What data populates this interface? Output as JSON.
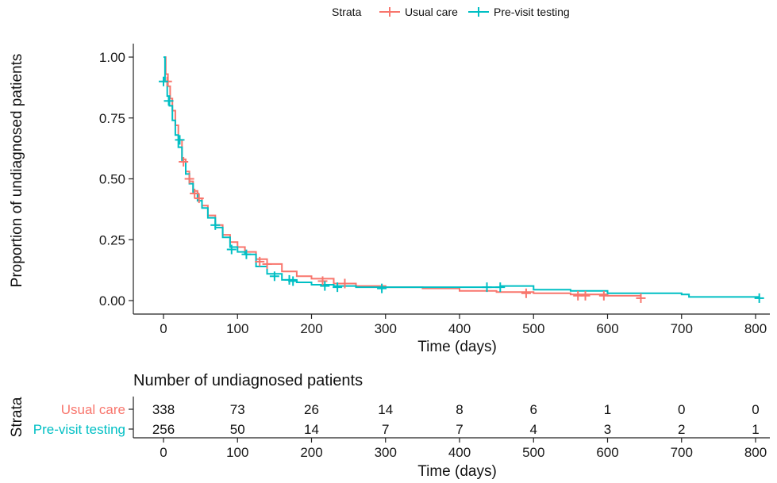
{
  "legend": {
    "title": "Strata",
    "items": [
      {
        "label": "Usual care",
        "color": "#F8766D"
      },
      {
        "label": "Pre-visit testing",
        "color": "#00BFC4"
      }
    ]
  },
  "chart_data": {
    "type": "line",
    "subtype": "kaplan-meier step curve",
    "ylabel": "Proportion of undiagnosed patients",
    "xlabel": "Time (days)",
    "xlim": [
      0,
      800
    ],
    "ylim": [
      0,
      1
    ],
    "x_ticks": [
      "0",
      "100",
      "200",
      "300",
      "400",
      "500",
      "600",
      "700",
      "800"
    ],
    "y_ticks": [
      "0.00",
      "0.25",
      "0.50",
      "0.75",
      "1.00"
    ],
    "grid": false,
    "legend_position": "top",
    "series": [
      {
        "name": "Usual care",
        "color": "#F8766D",
        "points": [
          [
            0,
            1.0
          ],
          [
            3,
            0.93
          ],
          [
            6,
            0.88
          ],
          [
            9,
            0.83
          ],
          [
            12,
            0.78
          ],
          [
            16,
            0.72
          ],
          [
            20,
            0.66
          ],
          [
            25,
            0.58
          ],
          [
            30,
            0.53
          ],
          [
            35,
            0.49
          ],
          [
            40,
            0.45
          ],
          [
            46,
            0.42
          ],
          [
            52,
            0.39
          ],
          [
            60,
            0.35
          ],
          [
            70,
            0.31
          ],
          [
            80,
            0.27
          ],
          [
            90,
            0.24
          ],
          [
            100,
            0.22
          ],
          [
            110,
            0.2
          ],
          [
            125,
            0.17
          ],
          [
            140,
            0.15
          ],
          [
            160,
            0.12
          ],
          [
            180,
            0.1
          ],
          [
            200,
            0.09
          ],
          [
            230,
            0.07
          ],
          [
            260,
            0.06
          ],
          [
            300,
            0.055
          ],
          [
            350,
            0.05
          ],
          [
            400,
            0.04
          ],
          [
            450,
            0.035
          ],
          [
            500,
            0.03
          ],
          [
            550,
            0.025
          ],
          [
            600,
            0.02
          ],
          [
            645,
            0.01
          ]
        ],
        "censor_marks": [
          [
            5,
            0.9
          ],
          [
            27,
            0.57
          ],
          [
            35,
            0.5
          ],
          [
            42,
            0.44
          ],
          [
            48,
            0.42
          ],
          [
            130,
            0.16
          ],
          [
            140,
            0.15
          ],
          [
            215,
            0.08
          ],
          [
            245,
            0.07
          ],
          [
            490,
            0.03
          ],
          [
            560,
            0.02
          ],
          [
            570,
            0.02
          ],
          [
            595,
            0.02
          ],
          [
            645,
            0.01
          ]
        ]
      },
      {
        "name": "Pre-visit testing",
        "color": "#00BFC4",
        "points": [
          [
            0,
            1.0
          ],
          [
            2,
            0.9
          ],
          [
            5,
            0.84
          ],
          [
            8,
            0.8
          ],
          [
            12,
            0.74
          ],
          [
            16,
            0.68
          ],
          [
            20,
            0.63
          ],
          [
            25,
            0.57
          ],
          [
            30,
            0.52
          ],
          [
            35,
            0.48
          ],
          [
            40,
            0.44
          ],
          [
            46,
            0.41
          ],
          [
            52,
            0.38
          ],
          [
            60,
            0.34
          ],
          [
            70,
            0.3
          ],
          [
            80,
            0.26
          ],
          [
            90,
            0.22
          ],
          [
            100,
            0.2
          ],
          [
            110,
            0.19
          ],
          [
            125,
            0.14
          ],
          [
            140,
            0.11
          ],
          [
            160,
            0.085
          ],
          [
            180,
            0.075
          ],
          [
            200,
            0.065
          ],
          [
            230,
            0.06
          ],
          [
            260,
            0.055
          ],
          [
            300,
            0.055
          ],
          [
            400,
            0.055
          ],
          [
            455,
            0.06
          ],
          [
            500,
            0.045
          ],
          [
            550,
            0.04
          ],
          [
            600,
            0.03
          ],
          [
            700,
            0.025
          ],
          [
            710,
            0.015
          ],
          [
            805,
            0.01
          ]
        ],
        "censor_marks": [
          [
            0,
            0.9
          ],
          [
            7,
            0.82
          ],
          [
            22,
            0.66
          ],
          [
            70,
            0.31
          ],
          [
            92,
            0.21
          ],
          [
            112,
            0.19
          ],
          [
            150,
            0.1
          ],
          [
            170,
            0.085
          ],
          [
            175,
            0.08
          ],
          [
            218,
            0.06
          ],
          [
            235,
            0.055
          ],
          [
            295,
            0.05
          ],
          [
            437,
            0.055
          ],
          [
            455,
            0.055
          ],
          [
            805,
            0.01
          ]
        ]
      }
    ]
  },
  "risk_table": {
    "title": "Number of undiagnosed patients",
    "row_axis_label": "Strata",
    "xlabel": "Time (days)",
    "x_ticks": [
      "0",
      "100",
      "200",
      "300",
      "400",
      "500",
      "600",
      "700",
      "800"
    ],
    "rows": [
      {
        "label": "Usual care",
        "color": "#F8766D",
        "values": [
          "338",
          "73",
          "26",
          "14",
          "8",
          "6",
          "1",
          "0",
          "0"
        ]
      },
      {
        "label": "Pre-visit testing",
        "color": "#00BFC4",
        "values": [
          "256",
          "50",
          "14",
          "7",
          "7",
          "4",
          "3",
          "2",
          "1"
        ]
      }
    ]
  }
}
